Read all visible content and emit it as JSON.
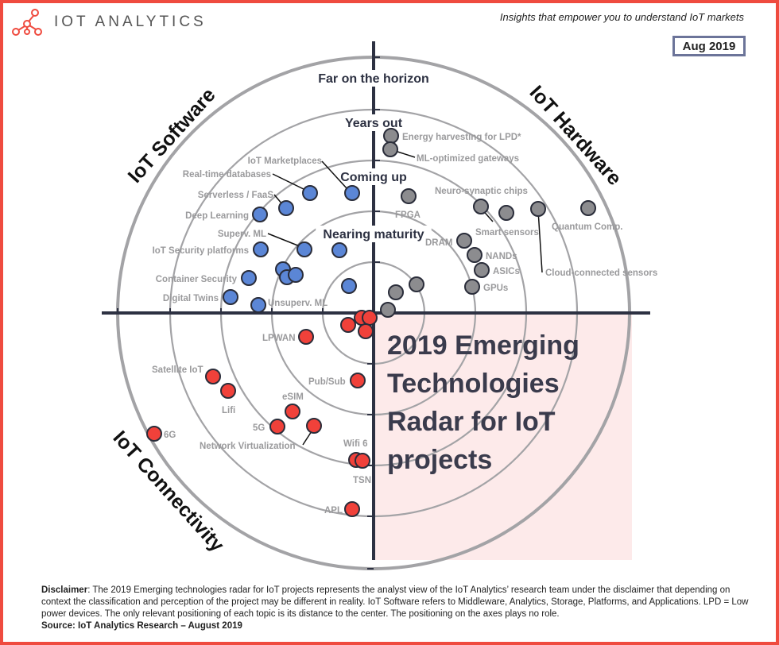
{
  "header": {
    "logo_text": "IOT ANALYTICS",
    "tagline": "Insights that empower you to understand IoT markets",
    "date": "Aug 2019"
  },
  "colors": {
    "border": "#ef4b3f",
    "software": "#5b86d6",
    "hardware": "#8c8c8f",
    "connectivity": "#f0413a",
    "highlight_quadrant": "#fdeaea",
    "axis": "#2d3142"
  },
  "rings": [
    "Nearing maturity",
    "Coming up",
    "Years out",
    "Far on the horizon"
  ],
  "quadrants": {
    "software": "IoT Software",
    "hardware": "IoT Hardware",
    "connectivity": "IoT Connectivity"
  },
  "title_lines": [
    "2019 Emerging",
    "Technologies",
    "Radar for IoT",
    "projects"
  ],
  "items": {
    "software": [
      "IoT Marketplaces",
      "Real-time databases",
      "Serverless / FaaS",
      "Deep Learning",
      "Superv. ML",
      "IoT Security platforms",
      "Container Security",
      "Digital Twins",
      "Unsuperv. ML"
    ],
    "hardware": [
      "Energy harvesting for LPD*",
      "ML-optimized gateways",
      "FPGA",
      "Neuro-synaptic chips",
      "Smart sensors",
      "Quantum Comp.",
      "Cloud-connected sensors",
      "DRAM",
      "NANDs",
      "ASICs",
      "GPUs"
    ],
    "connectivity": [
      "LPWAN",
      "Satellite IoT",
      "Lifi",
      "6G",
      "eSIM",
      "5G",
      "Network Virtualization",
      "Pub/Sub",
      "Wifi 6",
      "TSN",
      "APL"
    ]
  },
  "footer": {
    "disclaimer_label": "Disclaimer",
    "disclaimer_text": ": The 2019 Emerging technologies radar for IoT projects represents the analyst view of the IoT Analytics’ research team under the disclaimer that depending on context the classification and perception of the project may be different in reality. IoT Software refers to Middleware, Analytics, Storage, Platforms, and Applications. LPD = Low power devices. The only relevant positioning of each topic is its distance to the center. The positioning on the axes plays no role.",
    "source": "Source: IoT Analytics Research – August 2019"
  }
}
